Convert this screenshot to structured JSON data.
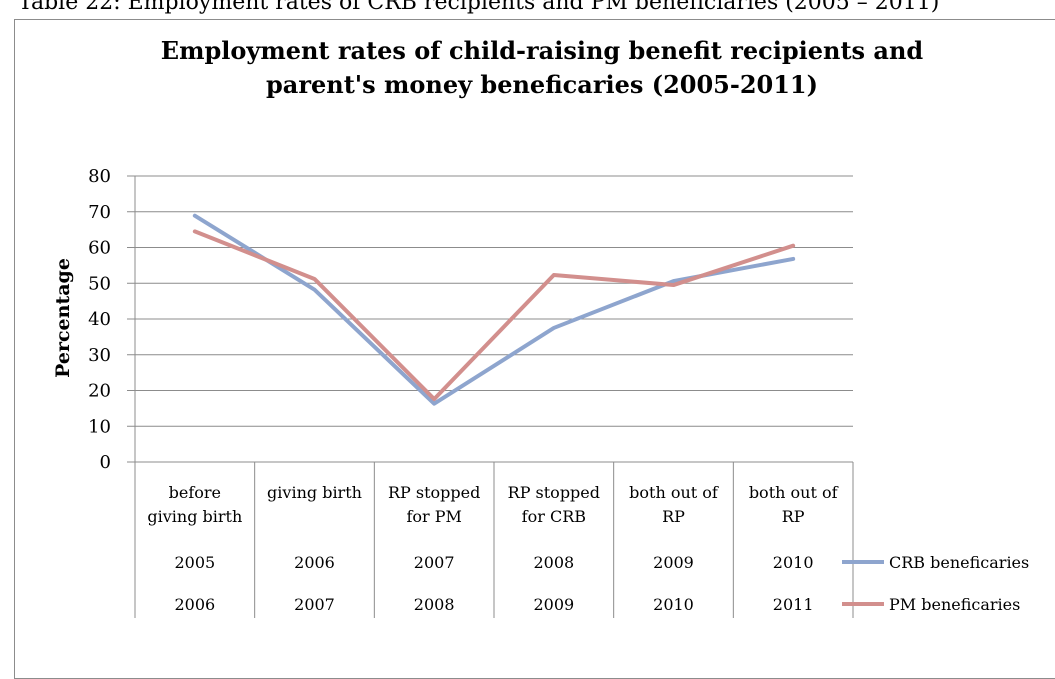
{
  "page": {
    "caption": "Table 22: Employment rates of CRB recipients and PM beneficiaries (2005 – 2011)"
  },
  "chart_data": {
    "type": "line",
    "title_lines": [
      "Employment rates of child-raising benefit recipients and",
      "parent's money beneficaries (2005-2011)"
    ],
    "ylabel": "Percentage",
    "ylim": [
      0,
      80
    ],
    "yticks": [
      0,
      10,
      20,
      30,
      40,
      50,
      60,
      70,
      80
    ],
    "grid": true,
    "legend_position": "right",
    "categories": [
      [
        "before",
        "giving birth"
      ],
      [
        "giving birth"
      ],
      [
        "RP stopped",
        "for PM"
      ],
      [
        "RP stopped",
        "for CRB"
      ],
      [
        "both out of",
        "RP"
      ],
      [
        "both out of",
        "RP"
      ]
    ],
    "series": [
      {
        "name": "CRB beneficaries",
        "color": "#8EA5CE",
        "years": [
          "2005",
          "2006",
          "2007",
          "2008",
          "2009",
          "2010"
        ],
        "values": [
          68.9,
          48.2,
          16.3,
          37.5,
          50.6,
          56.8
        ]
      },
      {
        "name": "PM beneficaries",
        "color": "#D28F8D",
        "years": [
          "2006",
          "2007",
          "2008",
          "2009",
          "2010",
          "2011"
        ],
        "values": [
          64.5,
          51.2,
          17.6,
          52.3,
          49.5,
          60.5
        ]
      }
    ]
  }
}
